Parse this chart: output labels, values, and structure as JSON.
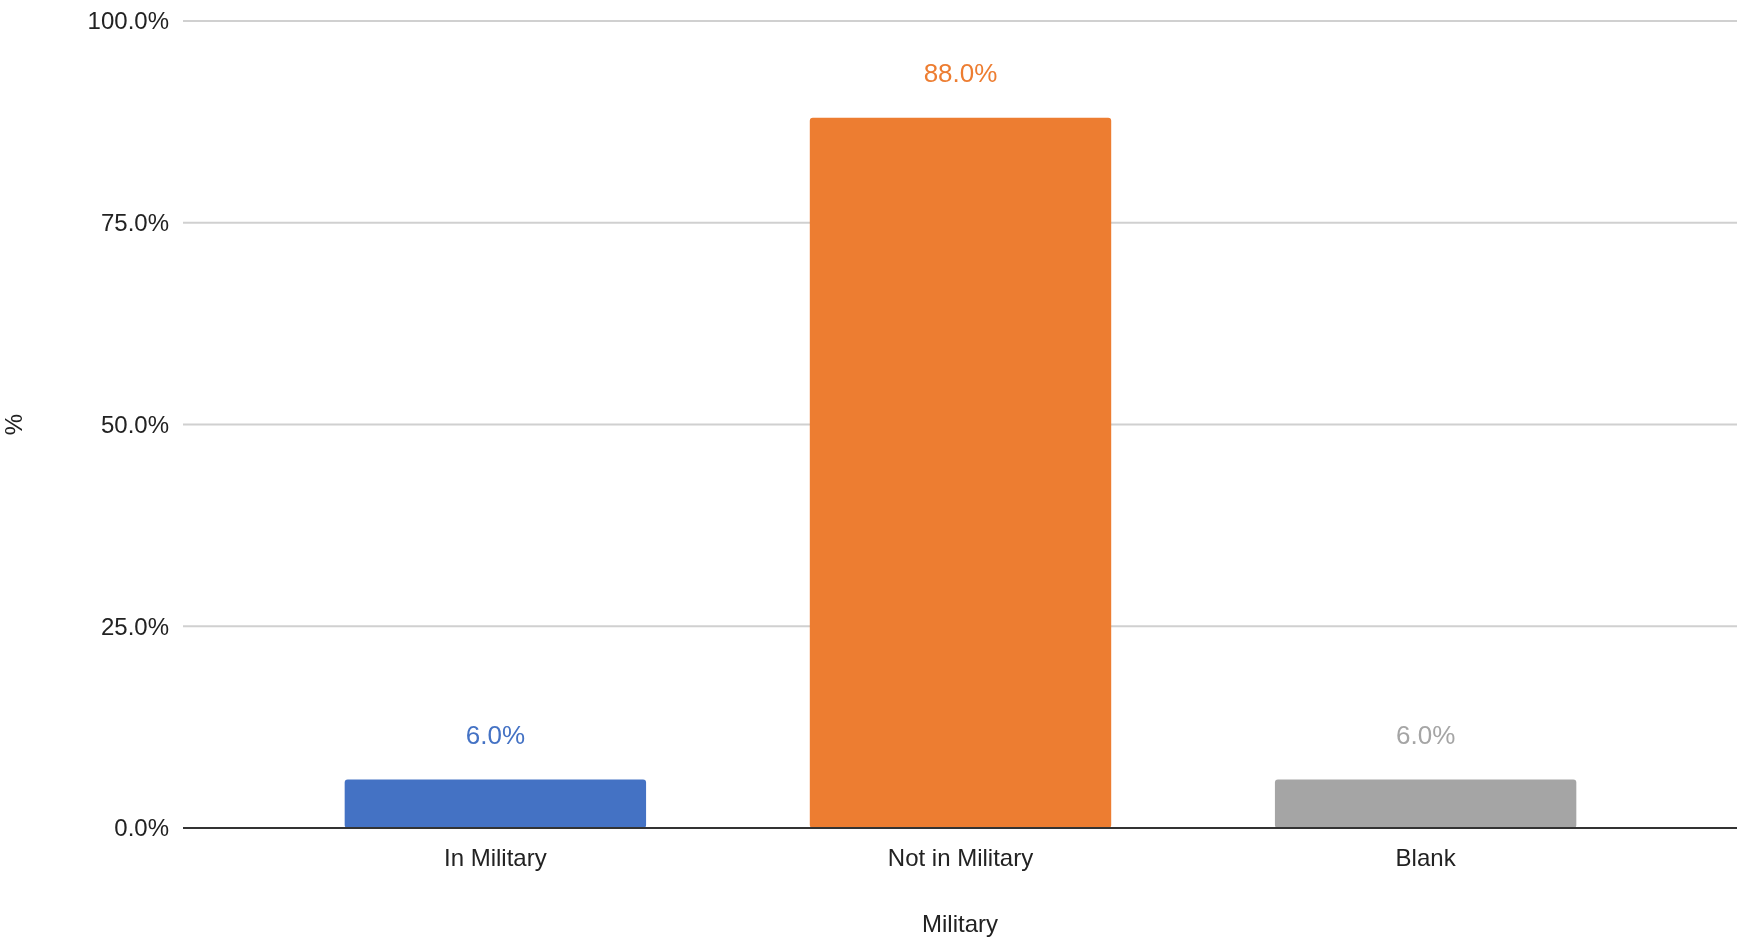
{
  "chart_data": {
    "type": "bar",
    "xlabel": "Military",
    "ylabel": "%",
    "categories": [
      "In Military",
      "Not in Military",
      "Blank"
    ],
    "values": [
      6.0,
      88.0,
      6.0
    ],
    "colors": [
      "#4472c4",
      "#ed7d31",
      "#a5a5a5"
    ],
    "value_labels": [
      "6.0%",
      "88.0%",
      "6.0%"
    ],
    "ylim": [
      0,
      100
    ],
    "yticks": [
      {
        "value": 0,
        "label": "0.0%"
      },
      {
        "value": 25,
        "label": "25.0%"
      },
      {
        "value": 50,
        "label": "50.0%"
      },
      {
        "value": 75,
        "label": "75.0%"
      },
      {
        "value": 100,
        "label": "100.0%"
      }
    ],
    "grid": "y"
  }
}
